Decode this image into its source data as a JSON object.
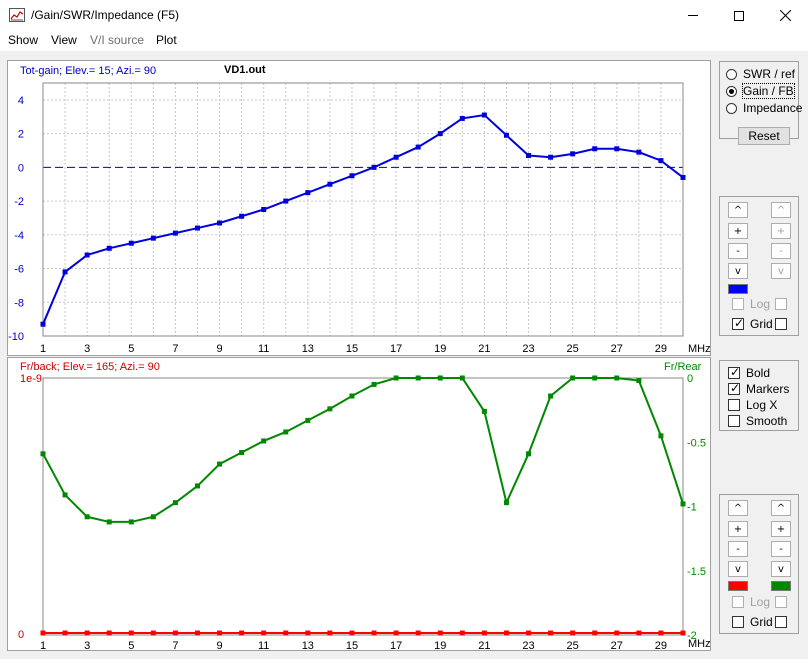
{
  "window": {
    "title": "/Gain/SWR/Impedance (F5)",
    "min_icon": "minimize-icon",
    "max_icon": "maximize-icon",
    "close_icon": "close-icon"
  },
  "menu": [
    "Show",
    "View",
    "V/I source",
    "Plot"
  ],
  "top_plot": {
    "header": "Tot-gain; Elev.= 15; Azi.= 90",
    "file": "VD1.out",
    "unit": "MHz",
    "color": "#0000dd"
  },
  "bottom_plot": {
    "header": "Fr/back; Elev.= 165; Azi.= 90",
    "right_header": "Fr/Rear",
    "left_top_label": "1e-9",
    "left_bottom_label": "0",
    "unit": "MHz",
    "frback_color": "#ff0000",
    "frrear_color": "#008800"
  },
  "mode": {
    "options": [
      "SWR / ref",
      "Gain / FB",
      "Impedance"
    ],
    "selected": "Gain / FB",
    "reset": "Reset"
  },
  "top_controls": {
    "up": "^",
    "plus": "+",
    "minus": "-",
    "down": "v",
    "swatch_color": "#0000ff",
    "log": "Log",
    "grid": "Grid"
  },
  "options": {
    "bold": "Bold",
    "markers": "Markers",
    "logx": "Log X",
    "smooth": "Smooth"
  },
  "bottom_controls": {
    "up": "^",
    "plus": "+",
    "minus": "-",
    "down": "v",
    "left_swatch": "#ff0000",
    "right_swatch": "#008800",
    "log": "Log",
    "grid": "Grid"
  },
  "chart_data": [
    {
      "type": "line",
      "title": "Tot-gain; Elev.= 15; Azi.= 90",
      "xlabel": "MHz",
      "xlim": [
        1,
        30
      ],
      "ylim": [
        -10,
        5
      ],
      "xticks": [
        1,
        3,
        5,
        7,
        9,
        11,
        13,
        15,
        17,
        19,
        21,
        23,
        25,
        27,
        29
      ],
      "yticks": [
        4,
        2,
        0,
        -2,
        -4,
        -6,
        -8,
        -10
      ],
      "grid": true,
      "series": [
        {
          "x": [
            1,
            2,
            3,
            4,
            5,
            6,
            7,
            8,
            9,
            10,
            11,
            12,
            13,
            14,
            15,
            16,
            17,
            18,
            19,
            20,
            21,
            22,
            23,
            24,
            25,
            26,
            27,
            28,
            29,
            30
          ],
          "values": [
            -9.3,
            -6.2,
            -5.2,
            -4.8,
            -4.5,
            -4.2,
            -3.9,
            -3.6,
            -3.3,
            -2.9,
            -2.5,
            -2.0,
            -1.5,
            -1.0,
            -0.5,
            0.0,
            0.6,
            1.2,
            2.0,
            2.9,
            3.1,
            1.9,
            0.7,
            0.6,
            0.8,
            1.1,
            1.1,
            0.9,
            0.4,
            -0.6
          ]
        }
      ]
    },
    {
      "type": "line",
      "title": "Fr/back; Elev.= 165; Azi.= 90",
      "xlabel": "MHz",
      "xlim": [
        1,
        30
      ],
      "y2label": "Fr/Rear",
      "y2lim": [
        -2,
        0
      ],
      "y2ticks": [
        "0",
        "-0.5",
        "-1",
        "-1.5",
        "-2"
      ],
      "xticks": [
        1,
        3,
        5,
        7,
        9,
        11,
        13,
        15,
        17,
        19,
        21,
        23,
        25,
        27,
        29
      ],
      "grid": false,
      "series": [
        {
          "name": "Fr/back",
          "x": [
            1,
            2,
            3,
            4,
            5,
            6,
            7,
            8,
            9,
            10,
            11,
            12,
            13,
            14,
            15,
            16,
            17,
            18,
            19,
            20,
            21,
            22,
            23,
            24,
            25,
            26,
            27,
            28,
            29,
            30
          ],
          "values": [
            0,
            0,
            0,
            0,
            0,
            0,
            0,
            0,
            0,
            0,
            0,
            0,
            0,
            0,
            0,
            0,
            0,
            0,
            0,
            0,
            0,
            0,
            0,
            0,
            0,
            0,
            0,
            0,
            0,
            0
          ]
        },
        {
          "name": "Fr/Rear",
          "x": [
            1,
            2,
            3,
            4,
            5,
            6,
            7,
            8,
            9,
            10,
            11,
            12,
            13,
            14,
            15,
            16,
            17,
            18,
            19,
            20,
            21,
            22,
            23,
            24,
            25,
            26,
            27,
            28,
            29,
            30
          ],
          "values": [
            -0.59,
            -0.91,
            -1.08,
            -1.12,
            -1.12,
            -1.08,
            -0.97,
            -0.84,
            -0.67,
            -0.58,
            -0.49,
            -0.42,
            -0.33,
            -0.24,
            -0.14,
            -0.05,
            0,
            0,
            0,
            0,
            -0.26,
            -0.97,
            -0.59,
            -0.14,
            0,
            0,
            0,
            -0.02,
            -0.45,
            -0.98
          ]
        }
      ]
    }
  ]
}
